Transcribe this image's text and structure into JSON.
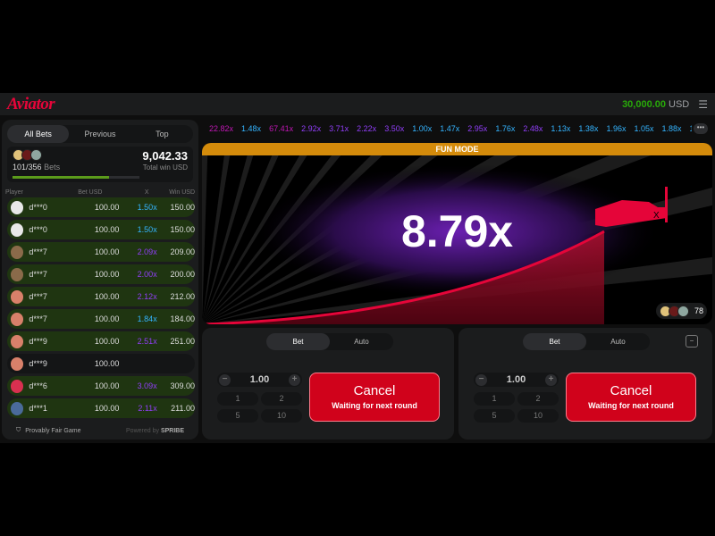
{
  "header": {
    "logo": "Aviator",
    "balance": "30,000.00",
    "currency": "USD",
    "menu_icon": "hamburger-icon"
  },
  "bets_panel": {
    "tabs": [
      {
        "label": "All Bets",
        "active": true
      },
      {
        "label": "Previous",
        "active": false
      },
      {
        "label": "Top",
        "active": false
      }
    ],
    "bets_count": "101/356",
    "bets_label": "Bets",
    "total_win": "9,042.33",
    "total_win_label": "Total win USD",
    "progress_pct": 76,
    "columns": [
      "Player",
      "Bet USD",
      "X",
      "Win USD"
    ],
    "rows": [
      {
        "player": "d***0",
        "bet": "100.00",
        "x": "1.50x",
        "win": "150.00",
        "xcolor": "#34b4ff"
      },
      {
        "player": "d***0",
        "bet": "100.00",
        "x": "1.50x",
        "win": "150.00",
        "xcolor": "#34b4ff"
      },
      {
        "player": "d***7",
        "bet": "100.00",
        "x": "2.09x",
        "win": "209.00",
        "xcolor": "#913ef8"
      },
      {
        "player": "d***7",
        "bet": "100.00",
        "x": "2.00x",
        "win": "200.00",
        "xcolor": "#913ef8"
      },
      {
        "player": "d***7",
        "bet": "100.00",
        "x": "2.12x",
        "win": "212.00",
        "xcolor": "#913ef8"
      },
      {
        "player": "d***7",
        "bet": "100.00",
        "x": "1.84x",
        "win": "184.00",
        "xcolor": "#34b4ff"
      },
      {
        "player": "d***9",
        "bet": "100.00",
        "x": "2.51x",
        "win": "251.00",
        "xcolor": "#913ef8"
      },
      {
        "player": "d***9",
        "bet": "100.00",
        "x": "",
        "win": "",
        "xcolor": ""
      },
      {
        "player": "d***6",
        "bet": "100.00",
        "x": "3.09x",
        "win": "309.00",
        "xcolor": "#913ef8"
      },
      {
        "player": "d***1",
        "bet": "100.00",
        "x": "2.11x",
        "win": "211.00",
        "xcolor": "#913ef8"
      }
    ],
    "footer": {
      "fair": "Provably Fair Game",
      "powered": "Powered by",
      "brand": "SPRIBE"
    }
  },
  "history": [
    {
      "v": "22.82x",
      "c": "#c017b4"
    },
    {
      "v": "1.48x",
      "c": "#34b4ff"
    },
    {
      "v": "67.41x",
      "c": "#c017b4"
    },
    {
      "v": "2.92x",
      "c": "#913ef8"
    },
    {
      "v": "3.71x",
      "c": "#913ef8"
    },
    {
      "v": "2.22x",
      "c": "#913ef8"
    },
    {
      "v": "3.50x",
      "c": "#913ef8"
    },
    {
      "v": "1.00x",
      "c": "#34b4ff"
    },
    {
      "v": "1.47x",
      "c": "#34b4ff"
    },
    {
      "v": "2.95x",
      "c": "#913ef8"
    },
    {
      "v": "1.76x",
      "c": "#34b4ff"
    },
    {
      "v": "2.48x",
      "c": "#913ef8"
    },
    {
      "v": "1.13x",
      "c": "#34b4ff"
    },
    {
      "v": "1.38x",
      "c": "#34b4ff"
    },
    {
      "v": "1.96x",
      "c": "#34b4ff"
    },
    {
      "v": "1.05x",
      "c": "#34b4ff"
    },
    {
      "v": "1.88x",
      "c": "#34b4ff"
    },
    {
      "v": "1.",
      "c": "#34b4ff"
    }
  ],
  "game": {
    "banner": "FUN MODE",
    "multiplier": "8.79x",
    "players_online": "78"
  },
  "bet_panels": [
    {
      "tabs": [
        "Bet",
        "Auto"
      ],
      "amount": "1.00",
      "quick": [
        "1",
        "2",
        "5",
        "10"
      ],
      "button": "Cancel",
      "button_sub": "Waiting for next round"
    },
    {
      "tabs": [
        "Bet",
        "Auto"
      ],
      "amount": "1.00",
      "quick": [
        "1",
        "2",
        "5",
        "10"
      ],
      "button": "Cancel",
      "button_sub": "Waiting for next round"
    }
  ]
}
